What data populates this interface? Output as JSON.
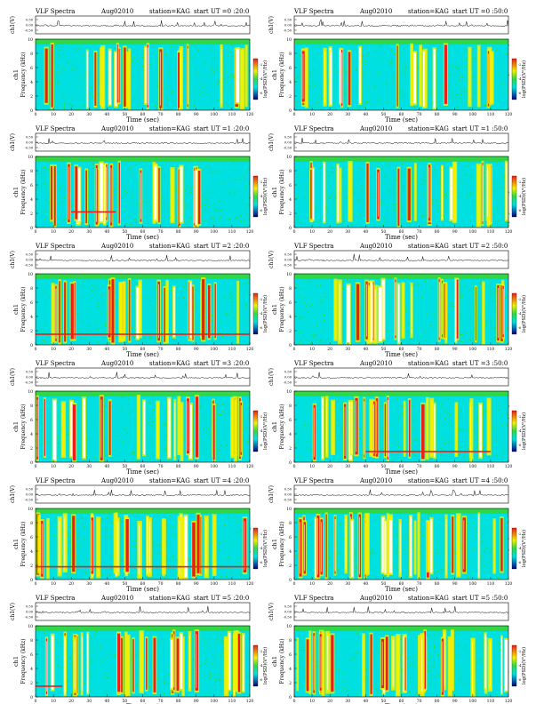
{
  "header_labels": {
    "title": "VLF Spectra",
    "date": "Aug02010",
    "station": "station=KAG",
    "start_prefix": "start  UT ="
  },
  "axis_labels": {
    "wave_y": "ch1(V)",
    "spec_y": "ch1\nFrequency  (kHz)",
    "x": "Time  (sec)",
    "colorbar": "log(PSD)(V²/Hz)"
  },
  "shared_axes": {
    "x_ticks": [
      "0",
      "10",
      "20",
      "30",
      "40",
      "50",
      "60",
      "70",
      "80",
      "90",
      "100",
      "110",
      "120"
    ],
    "x_range": [
      0,
      120
    ],
    "freq_ticks": [
      "0",
      "2",
      "4",
      "6",
      "8",
      "10"
    ],
    "freq_range": [
      0,
      10
    ],
    "wave_ticks": [
      "0.50",
      "0.00",
      "-0.50"
    ],
    "cb_ticks": [
      "-2",
      "-4",
      "-6"
    ]
  },
  "colors": {
    "background": "#00e0e0",
    "green": "#30d848",
    "yellow": "#f0f000",
    "red": "#e82018",
    "white": "#ffffff",
    "dark": "#000080"
  },
  "chart_data": [
    {
      "type": "heatmap",
      "start_time": "0 :20:0",
      "channel": "ch1",
      "density": 0.55,
      "seed": 11,
      "red_band": null
    },
    {
      "type": "heatmap",
      "start_time": "0 :50:0",
      "channel": "ch1",
      "density": 0.5,
      "seed": 23,
      "red_band": null
    },
    {
      "type": "heatmap",
      "start_time": "1 :20:0",
      "channel": "ch1",
      "density": 0.6,
      "seed": 37,
      "red_band": [
        2.2,
        20,
        45
      ]
    },
    {
      "type": "heatmap",
      "start_time": "1 :50:0",
      "channel": "ch1",
      "density": 0.6,
      "seed": 41,
      "red_band": null
    },
    {
      "type": "heatmap",
      "start_time": "2 :20:0",
      "channel": "ch1",
      "density": 0.62,
      "seed": 53,
      "red_band": [
        1.5,
        0,
        120
      ]
    },
    {
      "type": "heatmap",
      "start_time": "2 :50:0",
      "channel": "ch1",
      "density": 0.65,
      "seed": 67,
      "red_band": null
    },
    {
      "type": "heatmap",
      "start_time": "3 :20:0",
      "channel": "ch1",
      "density": 0.62,
      "seed": 71,
      "red_band": null
    },
    {
      "type": "heatmap",
      "start_time": "3 :50:0",
      "channel": "ch1",
      "density": 0.6,
      "seed": 83,
      "red_band": [
        1.5,
        40,
        110
      ]
    },
    {
      "type": "heatmap",
      "start_time": "4 :20:0",
      "channel": "ch1",
      "density": 0.75,
      "seed": 97,
      "red_band": [
        1.8,
        0,
        120
      ]
    },
    {
      "type": "heatmap",
      "start_time": "4 :50:0",
      "channel": "ch1",
      "density": 0.85,
      "seed": 101,
      "red_band": null
    },
    {
      "type": "heatmap",
      "start_time": "5 :20:0",
      "channel": "ch1",
      "density": 0.85,
      "seed": 113,
      "red_band": [
        1.5,
        0,
        15
      ]
    },
    {
      "type": "heatmap",
      "start_time": "5 :50:0",
      "channel": "ch1",
      "density": 0.9,
      "seed": 127,
      "red_band": null
    }
  ]
}
